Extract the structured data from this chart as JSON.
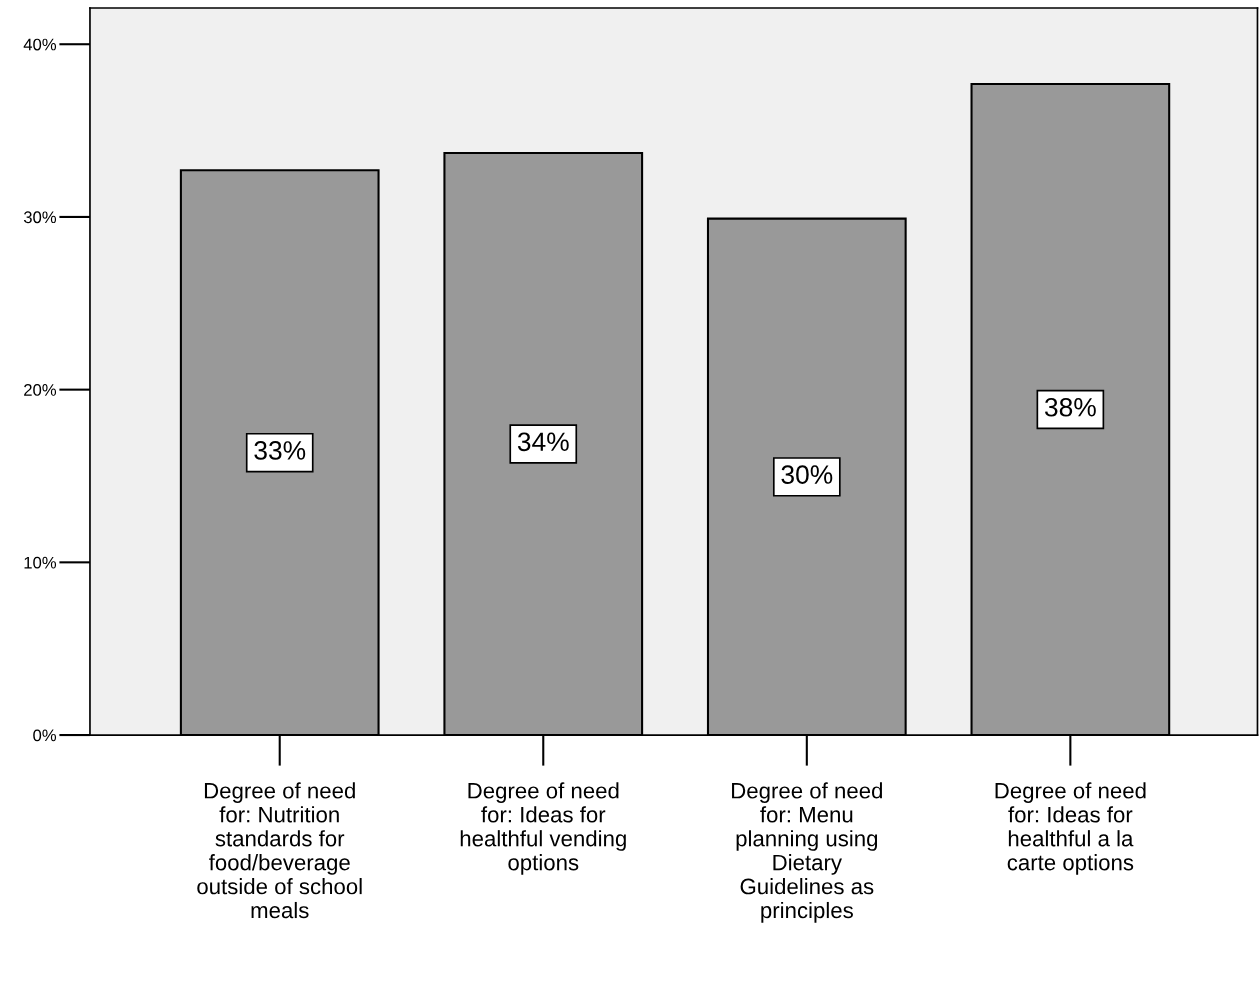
{
  "chart_data": {
    "type": "bar",
    "categories": [
      "Degree of need\nfor: Nutrition\nstandards for\nfood/beverage\noutside of school\nmeals",
      "Degree of need\nfor: Ideas for\nhealthful vending\noptions",
      "Degree of need\nfor: Menu\nplanning using\nDietary\nGuidelines as\nprinciples",
      "Degree of need\nfor: Ideas for\nhealthful a la\ncarte options"
    ],
    "values": [
      32.7,
      33.7,
      29.9,
      37.7
    ],
    "value_labels": [
      "33%",
      "34%",
      "30%",
      "38%"
    ],
    "color": "#999999",
    "ylim": [
      0,
      42.1
    ],
    "yticks": [
      {
        "value": 0,
        "label": "0%"
      },
      {
        "value": 10,
        "label": "10%"
      },
      {
        "value": 20,
        "label": "20%"
      },
      {
        "value": 30,
        "label": "30%"
      },
      {
        "value": 40,
        "label": "40%"
      }
    ],
    "grid": false,
    "legend": false
  }
}
